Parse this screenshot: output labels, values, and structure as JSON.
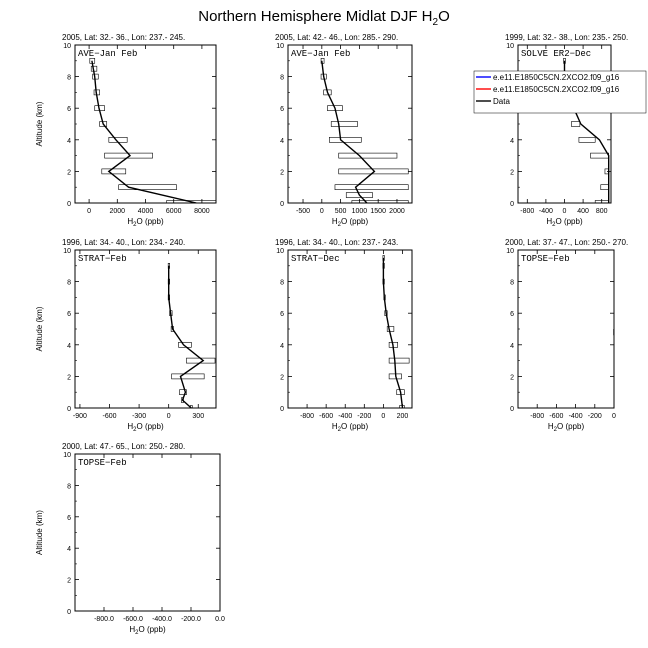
{
  "title_main": "Northern Hemisphere Midlat DJF H",
  "title_sub": "2",
  "title_end": "O",
  "xlabel_main": "H",
  "xlabel_sub": "2",
  "xlabel_end": "O (ppb)",
  "ylabel": "Altitude (km)",
  "legend": {
    "entries": [
      {
        "label": "e.e11.E1850C5CN.2XCO2.f09_g16",
        "color": "#0000ff"
      },
      {
        "label": "e.e11.E1850C5CN.2XCO2.f09_g16",
        "color": "#ff0000"
      },
      {
        "label": "Data",
        "color": "#000000"
      }
    ]
  },
  "chart_data": [
    {
      "type": "line",
      "header": "2005, Lat: 32.- 36., Lon: 237.- 245.",
      "campaign": "AVE−Jan Feb",
      "xlim": [
        -1000,
        9000
      ],
      "ylim": [
        0,
        10
      ],
      "xticks": [
        0,
        2000,
        4000,
        6000,
        8000
      ],
      "xticklabels": [
        "0",
        "2000",
        "4000",
        "6000",
        "8000"
      ],
      "yticks": [
        0,
        2,
        4,
        6,
        8,
        10
      ],
      "yticklabels": [
        "0",
        "2",
        "4",
        "6",
        "8",
        "10"
      ],
      "ylabel": "Altitude (km)",
      "show_ylabel": true,
      "series": [
        {
          "name": "Data",
          "x": [
            7600,
            2800,
            1400,
            2900,
            1900,
            1000,
            700,
            500,
            400,
            300,
            200
          ],
          "y": [
            0,
            1,
            2,
            3,
            4,
            5,
            6,
            7,
            8,
            8.5,
            9
          ],
          "xmin": [
            5500,
            2100,
            900,
            1100,
            1400,
            750,
            400,
            350,
            250,
            150,
            50
          ],
          "xmax": [
            9000,
            6200,
            2600,
            4500,
            2700,
            1250,
            1100,
            750,
            650,
            550,
            400
          ]
        }
      ]
    },
    {
      "type": "line",
      "header": "2005, Lat: 42.- 46., Lon: 285.- 290.",
      "campaign": "AVE−Jan Feb",
      "xlim": [
        -900,
        2400
      ],
      "ylim": [
        0,
        10
      ],
      "xticks": [
        -500,
        0,
        500,
        1000,
        1500,
        2000
      ],
      "xticklabels": [
        "-500",
        "0",
        "500",
        "1000",
        "1500",
        "2000"
      ],
      "yticks": [
        0,
        2,
        4,
        6,
        8,
        10
      ],
      "yticklabels": [
        "0",
        "2",
        "4",
        "6",
        "8",
        "10"
      ],
      "ylabel": "Altitude (km)",
      "show_ylabel": false,
      "series": [
        {
          "name": "Data",
          "x": [
            1200,
            1000,
            900,
            1400,
            1000,
            500,
            450,
            350,
            150,
            50,
            0
          ],
          "y": [
            0,
            0.5,
            1,
            2,
            3,
            4,
            5,
            6,
            7,
            8,
            9
          ],
          "xmin": [
            800,
            650,
            350,
            450,
            450,
            200,
            250,
            150,
            50,
            -20,
            -20
          ],
          "xmax": [
            2300,
            1350,
            2300,
            2300,
            2000,
            1050,
            950,
            550,
            250,
            120,
            60
          ]
        }
      ]
    },
    {
      "type": "line",
      "header": "1999, Lat: 32.- 38., Lon: 235.- 250.",
      "campaign": "SOLVE ER2−Dec",
      "xlim": [
        -1000,
        1000
      ],
      "ylim": [
        0,
        10
      ],
      "xticks": [
        -800,
        -400,
        0,
        400,
        800
      ],
      "xticklabels": [
        "-800",
        "-400",
        "0",
        "400",
        "800"
      ],
      "yticks": [
        0,
        2,
        4,
        6,
        8,
        10
      ],
      "yticklabels": [
        "0",
        "2",
        "4",
        "6",
        "8",
        "10"
      ],
      "ylabel": "Altitude (km)",
      "show_ylabel": false,
      "series": [
        {
          "name": "Data",
          "x": [
            950,
            950,
            950,
            950,
            750,
            350,
            200,
            50,
            0,
            0
          ],
          "y": [
            0,
            1,
            2,
            3,
            4,
            5,
            6,
            7,
            8,
            9
          ],
          "xmin": [
            660,
            780,
            870,
            560,
            310,
            150,
            50,
            -20,
            -20,
            -20
          ],
          "xmax": [
            950,
            950,
            950,
            950,
            660,
            330,
            150,
            80,
            30,
            20
          ]
        }
      ],
      "legend": true
    },
    {
      "type": "line",
      "header": "1996, Lat: 34.- 40., Lon: 234.- 240.",
      "campaign": "STRAT−Feb",
      "xlim": [
        -950,
        480
      ],
      "ylim": [
        0,
        10
      ],
      "xticks": [
        -900,
        -600,
        -300,
        0,
        300
      ],
      "xticklabels": [
        "-900",
        "-600",
        "-300",
        "0",
        "300"
      ],
      "yticks": [
        0,
        2,
        4,
        6,
        8,
        10
      ],
      "yticklabels": [
        "0",
        "2",
        "4",
        "6",
        "8",
        "10"
      ],
      "ylabel": "Altitude (km)",
      "show_ylabel": true,
      "series": [
        {
          "name": "Data",
          "x": [
            230,
            140,
            170,
            120,
            350,
            150,
            40,
            20,
            0,
            0,
            0
          ],
          "y": [
            0,
            0.5,
            1,
            2,
            3,
            4,
            5,
            6,
            7,
            8,
            9
          ],
          "xmin": [
            220,
            130,
            110,
            30,
            180,
            100,
            25,
            10,
            -5,
            -5,
            -5
          ],
          "xmax": [
            240,
            150,
            180,
            360,
            470,
            230,
            50,
            35,
            10,
            10,
            10
          ]
        }
      ]
    },
    {
      "type": "line",
      "header": "1996, Lat: 34.- 40., Lon: 237.- 243.",
      "campaign": "STRAT−Dec",
      "xlim": [
        -1000,
        300
      ],
      "ylim": [
        0,
        10
      ],
      "xticks": [
        -800,
        -600,
        -400,
        -200,
        0,
        200
      ],
      "xticklabels": [
        "-800",
        "-600",
        "-400",
        "-200",
        "0",
        "200"
      ],
      "yticks": [
        0,
        2,
        4,
        6,
        8,
        10
      ],
      "yticklabels": [
        "0",
        "2",
        "4",
        "6",
        "8",
        "10"
      ],
      "ylabel": "Altitude (km)",
      "show_ylabel": false,
      "series": [
        {
          "name": "Data",
          "x": [
            200,
            180,
            130,
            120,
            100,
            60,
            30,
            10,
            0,
            0,
            0
          ],
          "y": [
            0,
            1,
            2,
            3,
            4,
            5,
            6,
            7,
            8,
            9,
            9.5
          ],
          "xmin": [
            170,
            140,
            60,
            60,
            60,
            40,
            15,
            5,
            -5,
            -5,
            -5
          ],
          "xmax": [
            220,
            220,
            190,
            270,
            150,
            110,
            40,
            20,
            10,
            10,
            10
          ]
        }
      ]
    },
    {
      "type": "line",
      "header": "2000, Lat: 37.- 47., Lon: 250.- 270.",
      "campaign": "TOPSE−Feb",
      "xlim": [
        -1000,
        0
      ],
      "ylim": [
        0,
        10
      ],
      "xticks": [
        -800,
        -600,
        -400,
        -200,
        0
      ],
      "xticklabels": [
        "-800",
        "-600",
        "-400",
        "-200",
        "0"
      ],
      "yticks": [
        0,
        2,
        4,
        6,
        8,
        10
      ],
      "yticklabels": [
        "0",
        "2",
        "4",
        "6",
        "8",
        "10"
      ],
      "ylabel": "Altitude (km)",
      "show_ylabel": false,
      "series": [
        {
          "name": "Data",
          "x": [
            0,
            0
          ],
          "y": [
            4.6,
            5.0
          ],
          "xmin": [],
          "xmax": []
        }
      ]
    },
    {
      "type": "line",
      "header": "2000, Lat: 47.- 65., Lon: 250.- 280.",
      "campaign": "TOPSE−Feb",
      "xlim": [
        -1000,
        0
      ],
      "ylim": [
        0,
        10
      ],
      "xticks": [
        -800,
        -600,
        -400,
        -200,
        0
      ],
      "xticklabels": [
        "-800.0",
        "-600.0",
        "-400.0",
        "-200.0",
        "0.0"
      ],
      "yticks": [
        0,
        2,
        4,
        6,
        8,
        10
      ],
      "yticklabels": [
        "0",
        "2",
        "4",
        "6",
        "8",
        "10"
      ],
      "ylabel": "Altitude (km)",
      "show_ylabel": true,
      "series": [
        {
          "name": "Data",
          "x": [],
          "y": [],
          "xmin": [],
          "xmax": []
        }
      ]
    }
  ]
}
